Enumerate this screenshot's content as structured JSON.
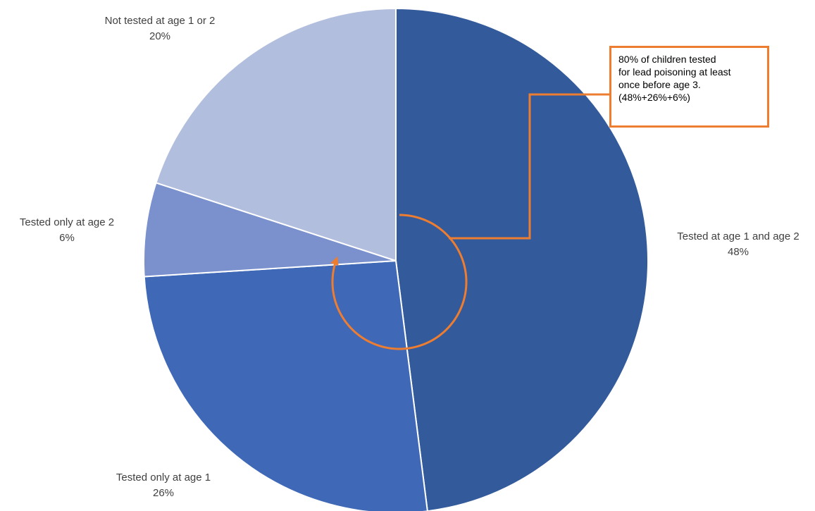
{
  "chart_data": {
    "type": "pie",
    "slices": [
      {
        "label": "Tested at age 1 and age 2",
        "value": 48,
        "value_label": "48%",
        "color": "#335A9B"
      },
      {
        "label": "Tested only at age 1",
        "value": 26,
        "value_label": "26%",
        "color": "#3F68B6"
      },
      {
        "label": "Tested only at age 2",
        "value": 6,
        "value_label": "6%",
        "color": "#7A91CE"
      },
      {
        "label": "Not tested at age 1 or 2",
        "value": 20,
        "value_label": "20%",
        "color": "#B2BEDE"
      }
    ],
    "start": "12 o'clock",
    "direction": "clockwise",
    "slice_border_color": "#FFFFFF",
    "annotation": {
      "lines": [
        "80% of children tested",
        "for lead poisoning at least",
        "once before age 3.",
        "(48%+26%+6%)"
      ],
      "accent_color": "#ED7D31"
    }
  }
}
